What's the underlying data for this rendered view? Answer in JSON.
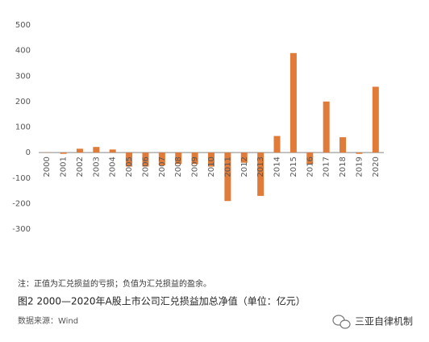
{
  "chart_data": {
    "type": "bar",
    "categories": [
      "2000",
      "2001",
      "2002",
      "2003",
      "2004",
      "2005",
      "2006",
      "2007",
      "2008",
      "2009",
      "2010",
      "2011",
      "2012",
      "2013",
      "2014",
      "2015",
      "2016",
      "2017",
      "2018",
      "2019",
      "2020"
    ],
    "values": [
      1,
      -5,
      15,
      22,
      12,
      -55,
      -55,
      -50,
      -45,
      -45,
      -55,
      -190,
      -40,
      -170,
      65,
      390,
      -45,
      200,
      60,
      -5,
      258
    ],
    "color": "#e07b39",
    "ylim": [
      -300,
      500
    ],
    "yticks": [
      -300,
      -200,
      -100,
      0,
      100,
      200,
      300,
      400,
      500
    ],
    "note": "注：正值为汇兑损益的亏损；负值为汇兑损益的盈余。",
    "caption": "图2  2000—2020年A股上市公司汇兑损益加总净值（单位：亿元）",
    "source": "数据来源：Wind"
  },
  "watermark": "三亚自律机制"
}
